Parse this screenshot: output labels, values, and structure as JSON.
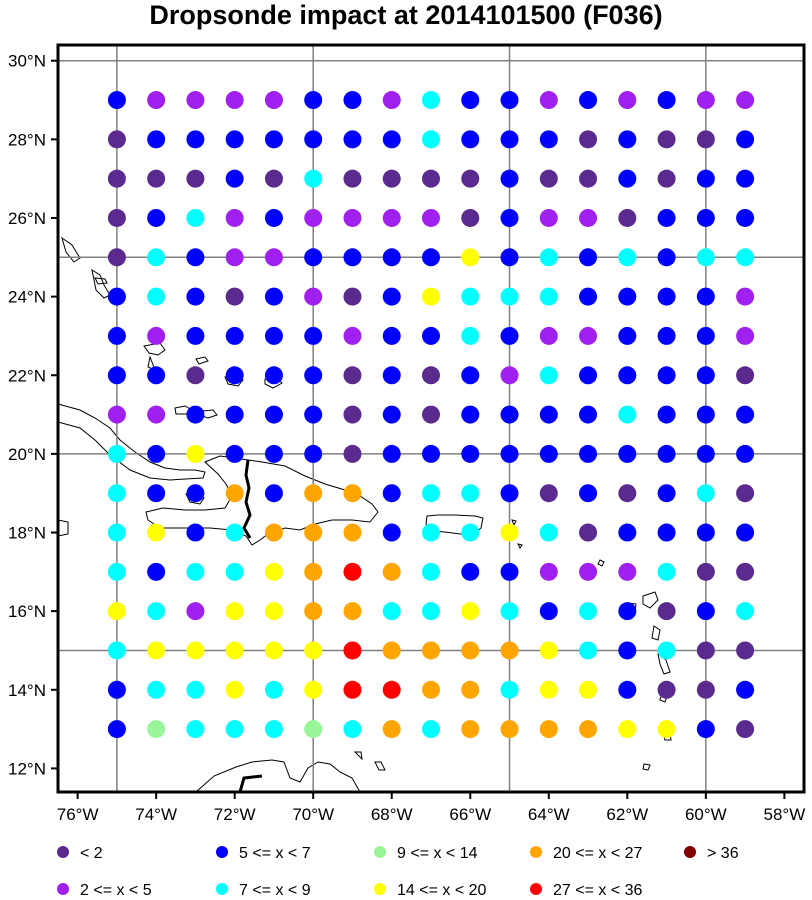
{
  "title": "Dropsonde impact at 2014101500 (F036)",
  "map": {
    "lon_range": [
      -76.5,
      -57.5
    ],
    "lat_range": [
      11.4,
      30.4
    ],
    "lon_ticks": [
      {
        "value": -76,
        "label": "76°W"
      },
      {
        "value": -74,
        "label": "74°W"
      },
      {
        "value": -72,
        "label": "72°W"
      },
      {
        "value": -70,
        "label": "70°W"
      },
      {
        "value": -68,
        "label": "68°W"
      },
      {
        "value": -66,
        "label": "66°W"
      },
      {
        "value": -64,
        "label": "64°W"
      },
      {
        "value": -62,
        "label": "62°W"
      },
      {
        "value": -60,
        "label": "60°W"
      },
      {
        "value": -58,
        "label": "58°W"
      }
    ],
    "lat_ticks": [
      {
        "value": 12,
        "label": "12°N"
      },
      {
        "value": 14,
        "label": "14°N"
      },
      {
        "value": 16,
        "label": "16°N"
      },
      {
        "value": 18,
        "label": "18°N"
      },
      {
        "value": 20,
        "label": "20°N"
      },
      {
        "value": 22,
        "label": "22°N"
      },
      {
        "value": 24,
        "label": "24°N"
      },
      {
        "value": 26,
        "label": "26°N"
      },
      {
        "value": 28,
        "label": "28°N"
      },
      {
        "value": 30,
        "label": "30°N"
      }
    ],
    "grid_lons": [
      -75,
      -70,
      -65,
      -60
    ],
    "grid_lats": [
      15,
      20,
      25,
      30
    ]
  },
  "dots": {
    "lons": [
      -75,
      -74,
      -73,
      -72,
      -71,
      -70,
      -69,
      -68,
      -67,
      -66,
      -65,
      -64,
      -63,
      -62,
      -61,
      -60,
      -59
    ],
    "lats": [
      29,
      28,
      27,
      26,
      25,
      24,
      23,
      22,
      21,
      20,
      19,
      18,
      17,
      16,
      15,
      14,
      13
    ],
    "category_rows": [
      "21111221322121211",
      "02222222322202002",
      "00020300002002022",
      "02312111102110222",
      "03211222252323233",
      "23202102533322221",
      "21222212232112221",
      "22022202021322220",
      "11222202022223222",
      "32522202222222222",
      "32262662332020230",
      "35236662335302222",
      "32335676322111300",
      "53155663353232023",
      "35555576666532300",
      "23353577663552002",
      "24333436366665520"
    ]
  },
  "legend": {
    "items": [
      {
        "label": "<  2",
        "color": "#5b2a8e"
      },
      {
        "label": "2 <= x <  5",
        "color": "#a020f0"
      },
      {
        "label": "5 <= x <  7",
        "color": "#0000ff"
      },
      {
        "label": "7 <= x <  9",
        "color": "#00ffff"
      },
      {
        "label": "9 <= x < 14",
        "color": "#98f598"
      },
      {
        "label": "14 <= x < 20",
        "color": "#ffff00"
      },
      {
        "label": "20 <= x < 27",
        "color": "#ffa500"
      },
      {
        "label": "27 <= x < 36",
        "color": "#ff0000"
      },
      {
        "label": "> 36",
        "color": "#800000"
      }
    ]
  }
}
